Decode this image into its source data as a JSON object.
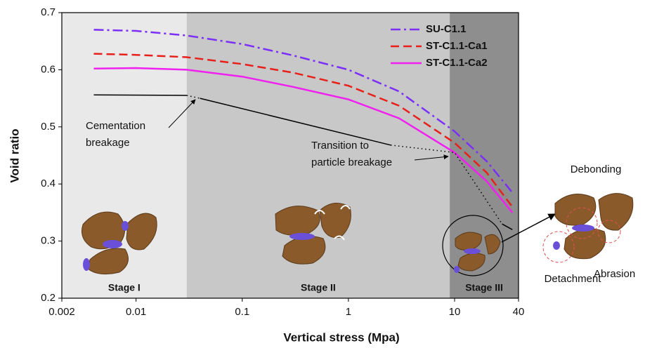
{
  "chart_data": {
    "type": "line",
    "x_label": "Vertical stress (Mpa)",
    "y_label": "Void ratio",
    "xscale": "log",
    "xlim": [
      0.002,
      40
    ],
    "ylim": [
      0.2,
      0.7
    ],
    "xticks": [
      0.002,
      0.01,
      0.1,
      1,
      10,
      40
    ],
    "yticks": [
      0.2,
      0.3,
      0.4,
      0.5,
      0.6,
      0.7
    ],
    "legend": "upper right",
    "stages": [
      {
        "label": "Stage I",
        "from": 0.002,
        "to": 0.03,
        "color": "#e9e9e9"
      },
      {
        "label": "Stage II",
        "from": 0.03,
        "to": 9,
        "color": "#c8c8c8"
      },
      {
        "label": "Stage III",
        "from": 9,
        "to": 40,
        "color": "#8e8e8e"
      }
    ],
    "series": [
      {
        "name": "SU-C1.1",
        "color": "#7b2ff7",
        "dash": "dashdot",
        "x": [
          0.004,
          0.01,
          0.03,
          0.1,
          0.3,
          1,
          3,
          10,
          20,
          35
        ],
        "values": [
          0.67,
          0.668,
          0.66,
          0.645,
          0.625,
          0.6,
          0.562,
          0.492,
          0.44,
          0.385
        ]
      },
      {
        "name": "ST-C1.1-Ca1",
        "color": "#e8201c",
        "dash": "dashed",
        "x": [
          0.004,
          0.01,
          0.03,
          0.1,
          0.3,
          1,
          3,
          10,
          20,
          35
        ],
        "values": [
          0.628,
          0.626,
          0.622,
          0.61,
          0.595,
          0.572,
          0.537,
          0.472,
          0.42,
          0.36
        ]
      },
      {
        "name": "ST-C1.1-Ca2",
        "color": "#f020f0",
        "dash": "solid",
        "x": [
          0.004,
          0.01,
          0.03,
          0.1,
          0.3,
          1,
          3,
          10,
          20,
          35
        ],
        "values": [
          0.602,
          0.603,
          0.6,
          0.588,
          0.57,
          0.548,
          0.515,
          0.455,
          0.405,
          0.35
        ]
      },
      {
        "color": "#000000",
        "dash": "solid",
        "x": [
          0.004,
          0.03,
          null,
          0.04,
          2.5,
          null,
          28,
          35
        ],
        "values": [
          0.556,
          0.555,
          null,
          0.55,
          0.468,
          null,
          0.33,
          0.32
        ]
      },
      {
        "color": "#000000",
        "dash": "dotted",
        "x": [
          0.03,
          0.04,
          null,
          2.5,
          10,
          28
        ],
        "values": [
          0.555,
          0.55,
          null,
          0.468,
          0.455,
          0.33
        ]
      }
    ],
    "annotations": [
      {
        "lines": [
          "Cementation",
          "breakage"
        ]
      },
      {
        "lines": [
          "Transition to",
          "particle breakage"
        ]
      },
      {
        "lines": [
          "Debonding"
        ]
      },
      {
        "lines": [
          "Abrasion"
        ]
      },
      {
        "lines": [
          "Detachment"
        ]
      }
    ]
  }
}
